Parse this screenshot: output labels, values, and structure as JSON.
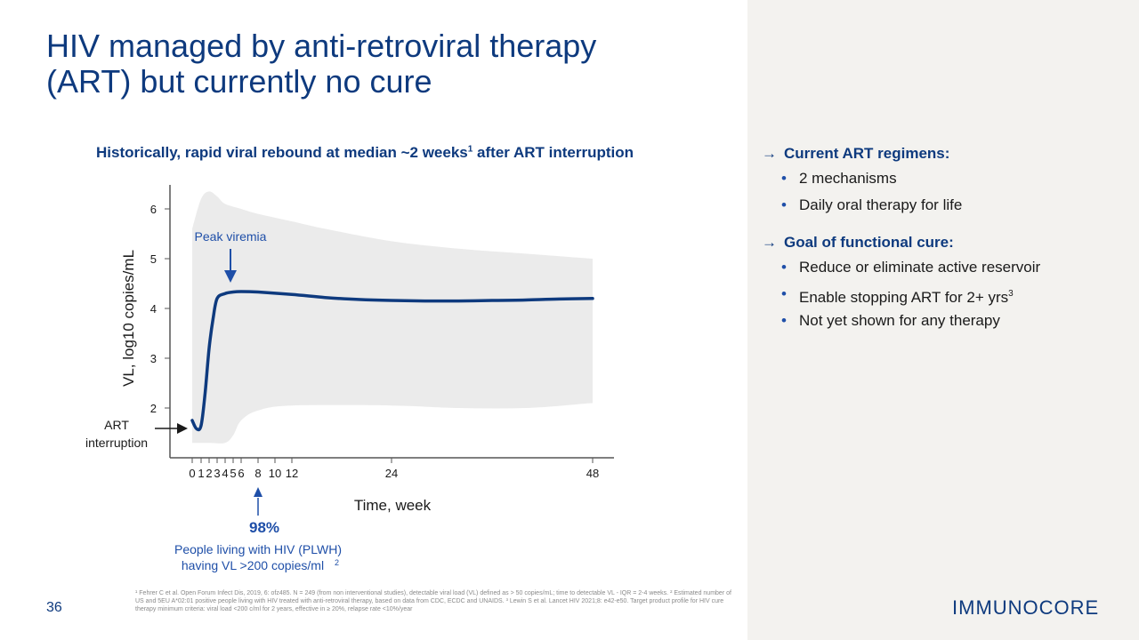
{
  "slide": {
    "title_line1": "HIV managed by anti-retroviral therapy",
    "title_line2": "(ART) but currently no cure",
    "page_number": "36",
    "logo_text": "IMMUNOCORE",
    "footnote": "¹ Fehrer C et al. Open Forum Infect Dis, 2019, 6: ofz485. N = 249 (from non interventional studies), detectable viral load (VL) defined as > 50 copies/mL; time to detectable VL - IQR = 2-4 weeks. ² Estimated number of US and 5EU A*02:01 positive people living with HIV treated with anti-retroviral therapy, based on data from CDC, ECDC and UNAIDS. ³ Lewin S et al. Lancet HIV 2021;8: e42-e50. Target product profile for HIV cure therapy minimum criteria: viral load <200 c/ml for 2 years, effective in ≥ 20%, relapse rate <10%/year"
  },
  "chart_heading": {
    "text": "Historically, rapid viral rebound at median ~2 weeks",
    "sup": "1",
    "text_after": " after ART interruption"
  },
  "chart_data": {
    "type": "line",
    "xlabel": "Time, week",
    "ylabel": "VL, log10 copies/mL",
    "x_ticks": [
      0,
      1,
      2,
      3,
      4,
      5,
      6,
      8,
      10,
      12,
      24,
      48
    ],
    "x_tick_labels": [
      "0",
      "1",
      "2",
      "3",
      "4",
      "5",
      "6",
      "8",
      "10",
      "12",
      "24",
      "48"
    ],
    "y_ticks": [
      2,
      3,
      4,
      5,
      6
    ],
    "series": [
      {
        "values": [
          [
            0,
            1.75
          ],
          [
            0.5,
            1.58
          ],
          [
            1,
            1.65
          ],
          [
            1.5,
            2.3
          ],
          [
            2,
            3.2
          ],
          [
            2.5,
            3.8
          ],
          [
            3,
            4.2
          ],
          [
            4,
            4.3
          ],
          [
            5,
            4.33
          ],
          [
            6,
            4.34
          ],
          [
            8,
            4.33
          ],
          [
            12,
            4.28
          ],
          [
            16,
            4.22
          ],
          [
            20,
            4.18
          ],
          [
            24,
            4.16
          ],
          [
            28,
            4.15
          ],
          [
            32,
            4.15
          ],
          [
            36,
            4.16
          ],
          [
            40,
            4.17
          ],
          [
            44,
            4.19
          ],
          [
            48,
            4.2
          ]
        ]
      }
    ],
    "band_upper": [
      [
        0,
        5.6
      ],
      [
        1,
        6.2
      ],
      [
        2,
        6.35
      ],
      [
        3,
        6.25
      ],
      [
        4,
        6.1
      ],
      [
        6,
        6.0
      ],
      [
        8,
        5.9
      ],
      [
        12,
        5.75
      ],
      [
        16,
        5.6
      ],
      [
        24,
        5.35
      ],
      [
        32,
        5.2
      ],
      [
        40,
        5.1
      ],
      [
        48,
        5.0
      ]
    ],
    "band_lower": [
      [
        0,
        1.3
      ],
      [
        2,
        1.3
      ],
      [
        4,
        1.3
      ],
      [
        5,
        1.45
      ],
      [
        6,
        1.75
      ],
      [
        8,
        1.95
      ],
      [
        12,
        2.05
      ],
      [
        24,
        2.05
      ],
      [
        32,
        2.0
      ],
      [
        40,
        2.0
      ],
      [
        48,
        2.1
      ]
    ],
    "colors": {
      "line": "#0e3a7e",
      "band": "#ebebeb",
      "annotation": "#1f4fa8",
      "axis": "#555555"
    },
    "annotations": {
      "peak_label": "Peak viremia",
      "peak_x": 5,
      "art_line1": "ART",
      "art_line2": "interruption",
      "pct_value": "98%",
      "pct_x": 8,
      "pct_line1": "People living with HIV (PLWH)",
      "pct_line2": "having VL >200 copies/ml",
      "pct_sup": "2"
    }
  },
  "panel": {
    "section1_title": "Current ART regimens:",
    "section1_items": [
      "2 mechanisms",
      "Daily oral therapy for life"
    ],
    "section2_title": "Goal of functional cure:",
    "section2_items": [
      "Reduce or eliminate active reservoir",
      "Enable stopping ART for 2+ yrs",
      "Not yet shown for any therapy"
    ],
    "section2_item2_sup": "3",
    "arrow_glyph": "→"
  }
}
